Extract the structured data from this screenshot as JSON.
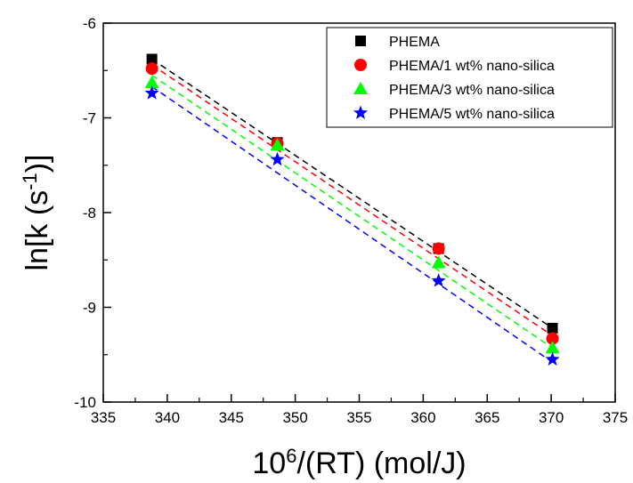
{
  "chart_data": {
    "type": "scatter",
    "title": "",
    "xlabel": {
      "base": "10",
      "sup": "6",
      "rest": "/(RT) (mol/J)"
    },
    "ylabel": {
      "prefix": "ln[k (s",
      "sup": "-1",
      "suffix": ")]"
    },
    "xlim": [
      335,
      375
    ],
    "ylim": [
      -10,
      -6
    ],
    "xticks": [
      "335",
      "340",
      "345",
      "350",
      "355",
      "360",
      "365",
      "370",
      "375"
    ],
    "yticks": [
      "-6",
      "-7",
      "-8",
      "-9",
      "-10"
    ],
    "legend_position": "top-right",
    "grid": false,
    "series": [
      {
        "name": "PHEMA",
        "marker": "square",
        "color": "#000000",
        "x": [
          338.8,
          348.6,
          361.2,
          370.1
        ],
        "y": [
          -6.38,
          -7.26,
          -8.38,
          -9.22
        ],
        "fit": [
          [
            338.8,
            -6.38
          ],
          [
            370.1,
            -9.22
          ]
        ]
      },
      {
        "name": "PHEMA/1 wt% nano-silica",
        "marker": "circle",
        "color": "#ff0000",
        "x": [
          338.8,
          348.6,
          361.2,
          370.1
        ],
        "y": [
          -6.48,
          -7.27,
          -8.38,
          -9.33
        ],
        "fit": [
          [
            338.8,
            -6.44
          ],
          [
            370.1,
            -9.3
          ]
        ]
      },
      {
        "name": "PHEMA/3 wt% nano-silica",
        "marker": "triangle",
        "color": "#00ff00",
        "x": [
          338.8,
          348.6,
          361.2,
          370.1
        ],
        "y": [
          -6.63,
          -7.29,
          -8.53,
          -9.43
        ],
        "fit": [
          [
            338.8,
            -6.55
          ],
          [
            370.1,
            -9.43
          ]
        ]
      },
      {
        "name": "PHEMA/5 wt% nano-silica",
        "marker": "star",
        "color": "#0000ff",
        "x": [
          338.8,
          348.6,
          361.2,
          370.1
        ],
        "y": [
          -6.74,
          -7.44,
          -8.72,
          -9.55
        ],
        "fit": [
          [
            338.8,
            -6.67
          ],
          [
            370.1,
            -9.58
          ]
        ]
      }
    ]
  }
}
